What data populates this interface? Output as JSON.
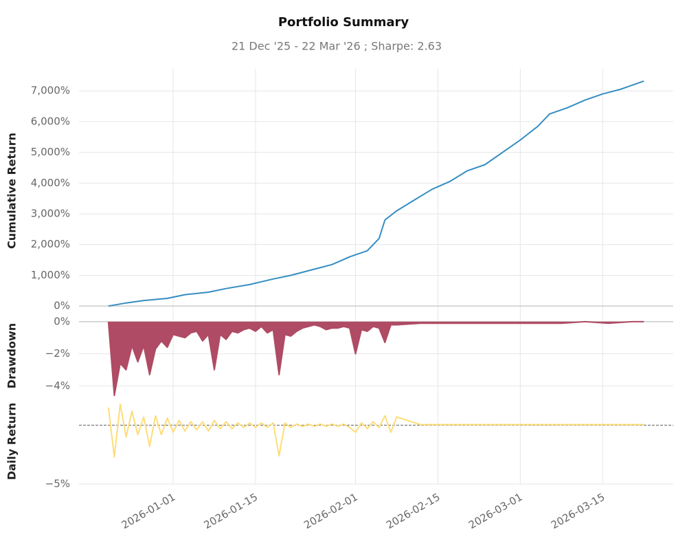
{
  "chart_data": [
    {
      "type": "line",
      "title": "Portfolio Summary",
      "subtitle": "21 Dec '25 - 22 Mar '26 ;  Sharpe: 2.63",
      "ylabel": "Cumulative Return",
      "color": "#348dc1",
      "fill": false,
      "zero_line": "solid",
      "x": [
        "2025-12-21",
        "2025-12-24",
        "2025-12-27",
        "2025-12-31",
        "2026-01-03",
        "2026-01-07",
        "2026-01-10",
        "2026-01-14",
        "2026-01-18",
        "2026-01-21",
        "2026-01-25",
        "2026-01-28",
        "2026-01-31",
        "2026-02-03",
        "2026-02-05",
        "2026-02-06",
        "2026-02-08",
        "2026-02-11",
        "2026-02-14",
        "2026-02-17",
        "2026-02-20",
        "2026-02-23",
        "2026-02-26",
        "2026-03-01",
        "2026-03-04",
        "2026-03-06",
        "2026-03-09",
        "2026-03-12",
        "2026-03-15",
        "2026-03-18",
        "2026-03-22"
      ],
      "values": [
        0,
        100,
        180,
        250,
        370,
        450,
        570,
        700,
        880,
        1000,
        1200,
        1350,
        1600,
        1800,
        2200,
        2800,
        3100,
        3450,
        3800,
        4050,
        4400,
        4600,
        5000,
        5400,
        5850,
        6250,
        6450,
        6700,
        6900,
        7050,
        7320
      ],
      "xlim": [
        "2025-12-16",
        "2026-03-27"
      ],
      "ylim": [
        -220,
        7720
      ],
      "yticks": [
        {
          "value": 0,
          "label": "0%"
        },
        {
          "value": 1000,
          "label": "1,000%"
        },
        {
          "value": 2000,
          "label": "2,000%"
        },
        {
          "value": 3000,
          "label": "3,000%"
        },
        {
          "value": 4000,
          "label": "4,000%"
        },
        {
          "value": 5000,
          "label": "5,000%"
        },
        {
          "value": 6000,
          "label": "6,000%"
        },
        {
          "value": 7000,
          "label": "7,000%"
        }
      ]
    },
    {
      "type": "line",
      "ylabel": "Drawdown",
      "color": "#af4b64",
      "fill": true,
      "zero_line": "solid",
      "x": [
        "2025-12-21",
        "2025-12-22",
        "2025-12-23",
        "2025-12-24",
        "2025-12-25",
        "2025-12-26",
        "2025-12-27",
        "2025-12-28",
        "2025-12-29",
        "2025-12-30",
        "2025-12-31",
        "2026-01-01",
        "2026-01-02",
        "2026-01-03",
        "2026-01-04",
        "2026-01-05",
        "2026-01-06",
        "2026-01-07",
        "2026-01-08",
        "2026-01-09",
        "2026-01-10",
        "2026-01-11",
        "2026-01-12",
        "2026-01-13",
        "2026-01-14",
        "2026-01-15",
        "2026-01-16",
        "2026-01-17",
        "2026-01-18",
        "2026-01-19",
        "2026-01-20",
        "2026-01-21",
        "2026-01-22",
        "2026-01-23",
        "2026-01-24",
        "2026-01-25",
        "2026-01-26",
        "2026-01-27",
        "2026-01-28",
        "2026-01-29",
        "2026-01-30",
        "2026-01-31",
        "2026-02-01",
        "2026-02-02",
        "2026-02-03",
        "2026-02-04",
        "2026-02-05",
        "2026-02-06",
        "2026-02-07",
        "2026-02-08",
        "2026-02-12",
        "2026-02-16",
        "2026-02-20",
        "2026-02-24",
        "2026-02-28",
        "2026-03-04",
        "2026-03-08",
        "2026-03-12",
        "2026-03-16",
        "2026-03-20",
        "2026-03-22"
      ],
      "values": [
        0,
        -4.6,
        -2.6,
        -3.0,
        -1.5,
        -2.5,
        -1.5,
        -3.3,
        -1.7,
        -1.2,
        -1.6,
        -0.8,
        -0.9,
        -1.0,
        -0.7,
        -0.6,
        -1.2,
        -0.8,
        -3.0,
        -0.8,
        -1.1,
        -0.6,
        -0.7,
        -0.5,
        -0.4,
        -0.6,
        -0.3,
        -0.7,
        -0.5,
        -3.3,
        -0.8,
        -0.9,
        -0.6,
        -0.4,
        -0.3,
        -0.2,
        -0.3,
        -0.5,
        -0.4,
        -0.4,
        -0.3,
        -0.4,
        -2.0,
        -0.5,
        -0.6,
        -0.3,
        -0.4,
        -1.3,
        -0.2,
        -0.2,
        -0.1,
        -0.1,
        -0.1,
        -0.1,
        -0.1,
        -0.1,
        -0.1,
        0,
        -0.1,
        0,
        0
      ],
      "xlim": [
        "2025-12-16",
        "2026-03-27"
      ],
      "ylim": [
        -4.8,
        0.55
      ],
      "yticks": [
        {
          "value": 0,
          "label": "0%"
        },
        {
          "value": -2,
          "label": "−2%"
        },
        {
          "value": -4,
          "label": "−4%"
        }
      ]
    },
    {
      "type": "line",
      "ylabel": "Daily Return",
      "color": "#fedd78",
      "fill": false,
      "zero_line": "dashed",
      "x": [
        "2025-12-21",
        "2025-12-22",
        "2025-12-23",
        "2025-12-24",
        "2025-12-25",
        "2025-12-26",
        "2025-12-27",
        "2025-12-28",
        "2025-12-29",
        "2025-12-30",
        "2025-12-31",
        "2026-01-01",
        "2026-01-02",
        "2026-01-03",
        "2026-01-04",
        "2026-01-05",
        "2026-01-06",
        "2026-01-07",
        "2026-01-08",
        "2026-01-09",
        "2026-01-10",
        "2026-01-11",
        "2026-01-12",
        "2026-01-13",
        "2026-01-14",
        "2026-01-15",
        "2026-01-16",
        "2026-01-17",
        "2026-01-18",
        "2026-01-19",
        "2026-01-20",
        "2026-01-21",
        "2026-01-22",
        "2026-01-23",
        "2026-01-24",
        "2026-01-25",
        "2026-01-26",
        "2026-01-27",
        "2026-01-28",
        "2026-01-29",
        "2026-01-30",
        "2026-01-31",
        "2026-02-01",
        "2026-02-02",
        "2026-02-03",
        "2026-02-04",
        "2026-02-05",
        "2026-02-06",
        "2026-02-07",
        "2026-02-08",
        "2026-02-12",
        "2026-02-16",
        "2026-02-20",
        "2026-02-24",
        "2026-02-28",
        "2026-03-04",
        "2026-03-08",
        "2026-03-12",
        "2026-03-16",
        "2026-03-20",
        "2026-03-22"
      ],
      "values": [
        1.5,
        -2.7,
        1.8,
        -1.0,
        1.2,
        -0.8,
        0.7,
        -1.8,
        0.8,
        -0.8,
        0.6,
        -0.6,
        0.4,
        -0.5,
        0.3,
        -0.4,
        0.3,
        -0.5,
        0.4,
        -0.3,
        0.3,
        -0.3,
        0.2,
        -0.2,
        0.2,
        -0.2,
        0.2,
        -0.2,
        0.2,
        -2.6,
        0.2,
        -0.2,
        0.1,
        -0.1,
        0.1,
        -0.1,
        0.1,
        -0.1,
        0.1,
        -0.1,
        0.1,
        -0.2,
        -0.6,
        0.2,
        -0.3,
        0.3,
        -0.2,
        0.8,
        -0.6,
        0.7,
        0.05,
        0.05,
        0.05,
        0.05,
        0.05,
        0.05,
        0.05,
        0.05,
        0.05,
        0.05,
        0.05
      ],
      "xlim": [
        "2025-12-16",
        "2026-03-27"
      ],
      "ylim": [
        -5,
        2.25
      ],
      "yticks": [
        {
          "value": -5,
          "label": "−5%"
        }
      ],
      "xticks": [
        "2026-01-01",
        "2026-01-15",
        "2026-02-01",
        "2026-02-15",
        "2026-03-01",
        "2026-03-15"
      ]
    }
  ]
}
